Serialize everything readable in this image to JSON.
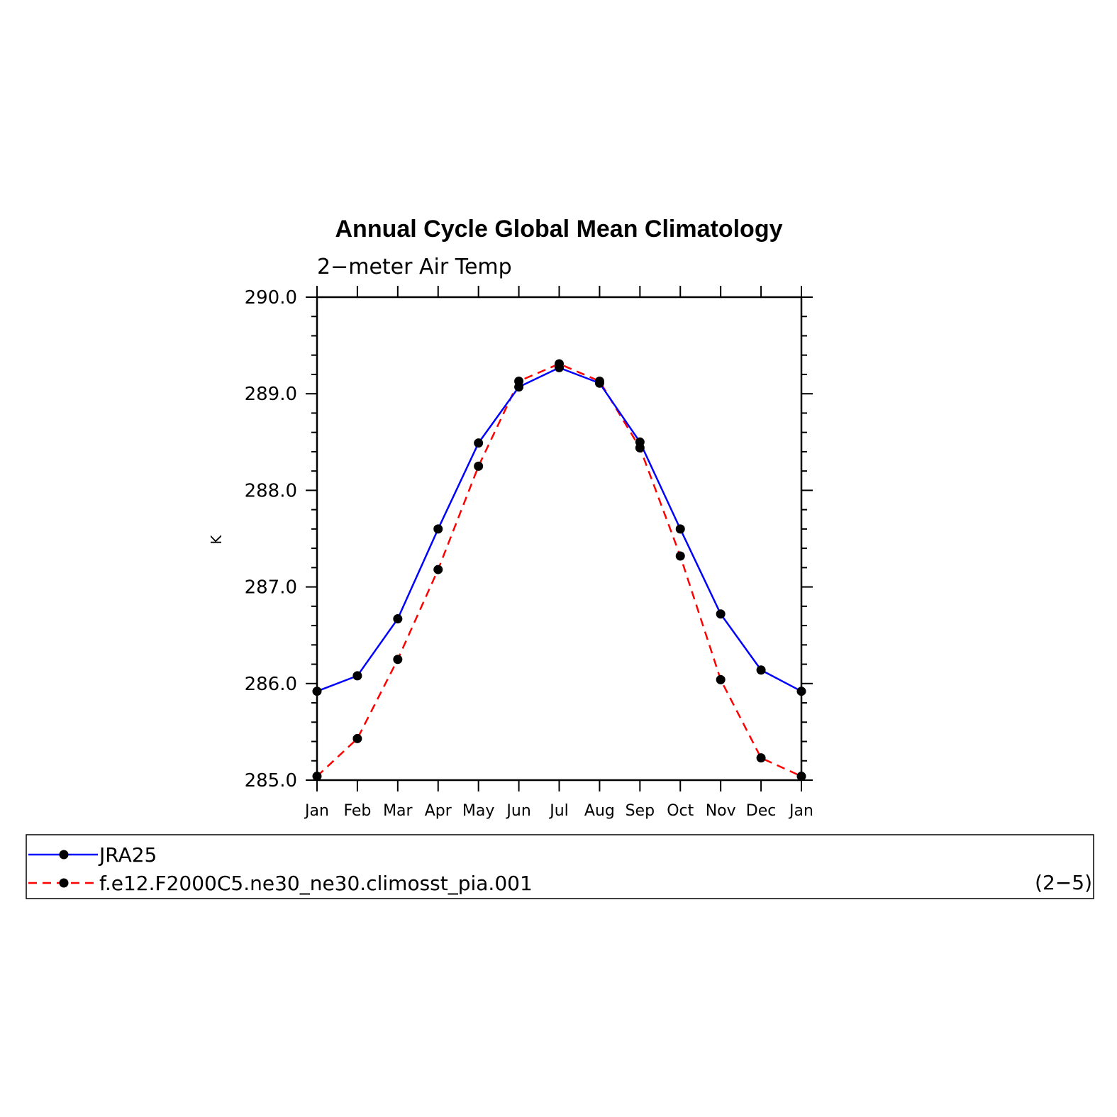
{
  "chart_data": {
    "type": "line",
    "title": "Annual Cycle Global Mean Climatology",
    "subtitle": "2−meter Air Temp",
    "ylabel": "K",
    "xlabel": "",
    "categories": [
      "Jan",
      "Feb",
      "Mar",
      "Apr",
      "May",
      "Jun",
      "Jul",
      "Aug",
      "Sep",
      "Oct",
      "Nov",
      "Dec",
      "Jan"
    ],
    "ylim": [
      285.0,
      290.0
    ],
    "yticks": [
      "285.0",
      "286.0",
      "287.0",
      "288.0",
      "289.0",
      "290.0"
    ],
    "series": [
      {
        "name": "JRA25",
        "color": "#0000ff",
        "dash": "solid",
        "marker": "filled-circle",
        "values": [
          285.92,
          286.08,
          286.67,
          287.6,
          288.49,
          289.07,
          289.27,
          289.11,
          288.5,
          287.6,
          286.72,
          286.14,
          285.92
        ]
      },
      {
        "name": "f.e12.F2000C5.ne30_ne30.climosst_pia.001",
        "color": "#ff0000",
        "dash": "dashed",
        "marker": "filled-circle",
        "values": [
          285.04,
          285.43,
          286.25,
          287.18,
          288.25,
          289.13,
          289.31,
          289.13,
          288.44,
          287.32,
          286.04,
          285.23,
          285.04
        ]
      }
    ],
    "grid": false,
    "legend_position": "bottom",
    "annotation": "(2−5)"
  }
}
